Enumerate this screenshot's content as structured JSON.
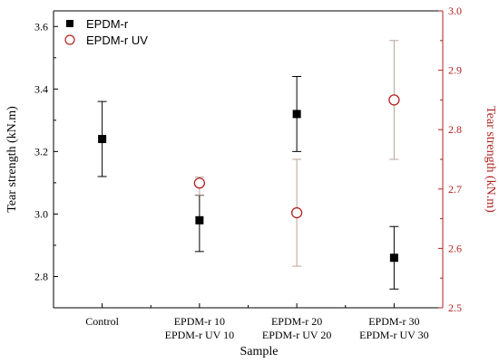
{
  "chart_data": {
    "type": "scatter",
    "title": "",
    "xlabel": "Sample",
    "ylabel_left": "Tear strength (kN.m)",
    "ylabel_right": "Tear strength (kN.m)",
    "ylim_left": [
      2.7,
      3.65
    ],
    "ylim_right": [
      2.5,
      3.0
    ],
    "yticks_left": [
      "2.8",
      "3.0",
      "3.2",
      "3.4",
      "3.6"
    ],
    "yticks_right": [
      "2.5",
      "2.6",
      "2.7",
      "2.8",
      "2.9",
      "3.0"
    ],
    "categories": [
      {
        "line1": "Control",
        "line2": ""
      },
      {
        "line1": "EPDM-r 10",
        "line2": "EPDM-r UV 10"
      },
      {
        "line1": "EPDM-r 20",
        "line2": "EPDM-r UV 20"
      },
      {
        "line1": "EPDM-r 30",
        "line2": "EPDM-r UV 30"
      }
    ],
    "legend_position": "top-left",
    "series": [
      {
        "name": "EPDM-r",
        "axis": "left",
        "marker": "filled-square",
        "color": "#000000",
        "points": [
          {
            "x": 0,
            "y": 3.24,
            "err_low": 3.12,
            "err_high": 3.36
          },
          {
            "x": 1,
            "y": 2.98,
            "err_low": 2.88,
            "err_high": 3.06
          },
          {
            "x": 2,
            "y": 3.32,
            "err_low": 3.2,
            "err_high": 3.44
          },
          {
            "x": 3,
            "y": 2.86,
            "err_low": 2.76,
            "err_high": 2.96
          }
        ]
      },
      {
        "name": "EPDM-r UV",
        "axis": "right",
        "marker": "open-circle",
        "color": "#b22222",
        "errorbar_color": "#b8a59a",
        "points": [
          {
            "x": 1,
            "y": 2.71,
            "err_low": 2.69,
            "err_high": 2.72
          },
          {
            "x": 2,
            "y": 2.66,
            "err_low": 2.57,
            "err_high": 2.75
          },
          {
            "x": 3,
            "y": 2.85,
            "err_low": 2.75,
            "err_high": 2.95
          }
        ]
      }
    ]
  }
}
